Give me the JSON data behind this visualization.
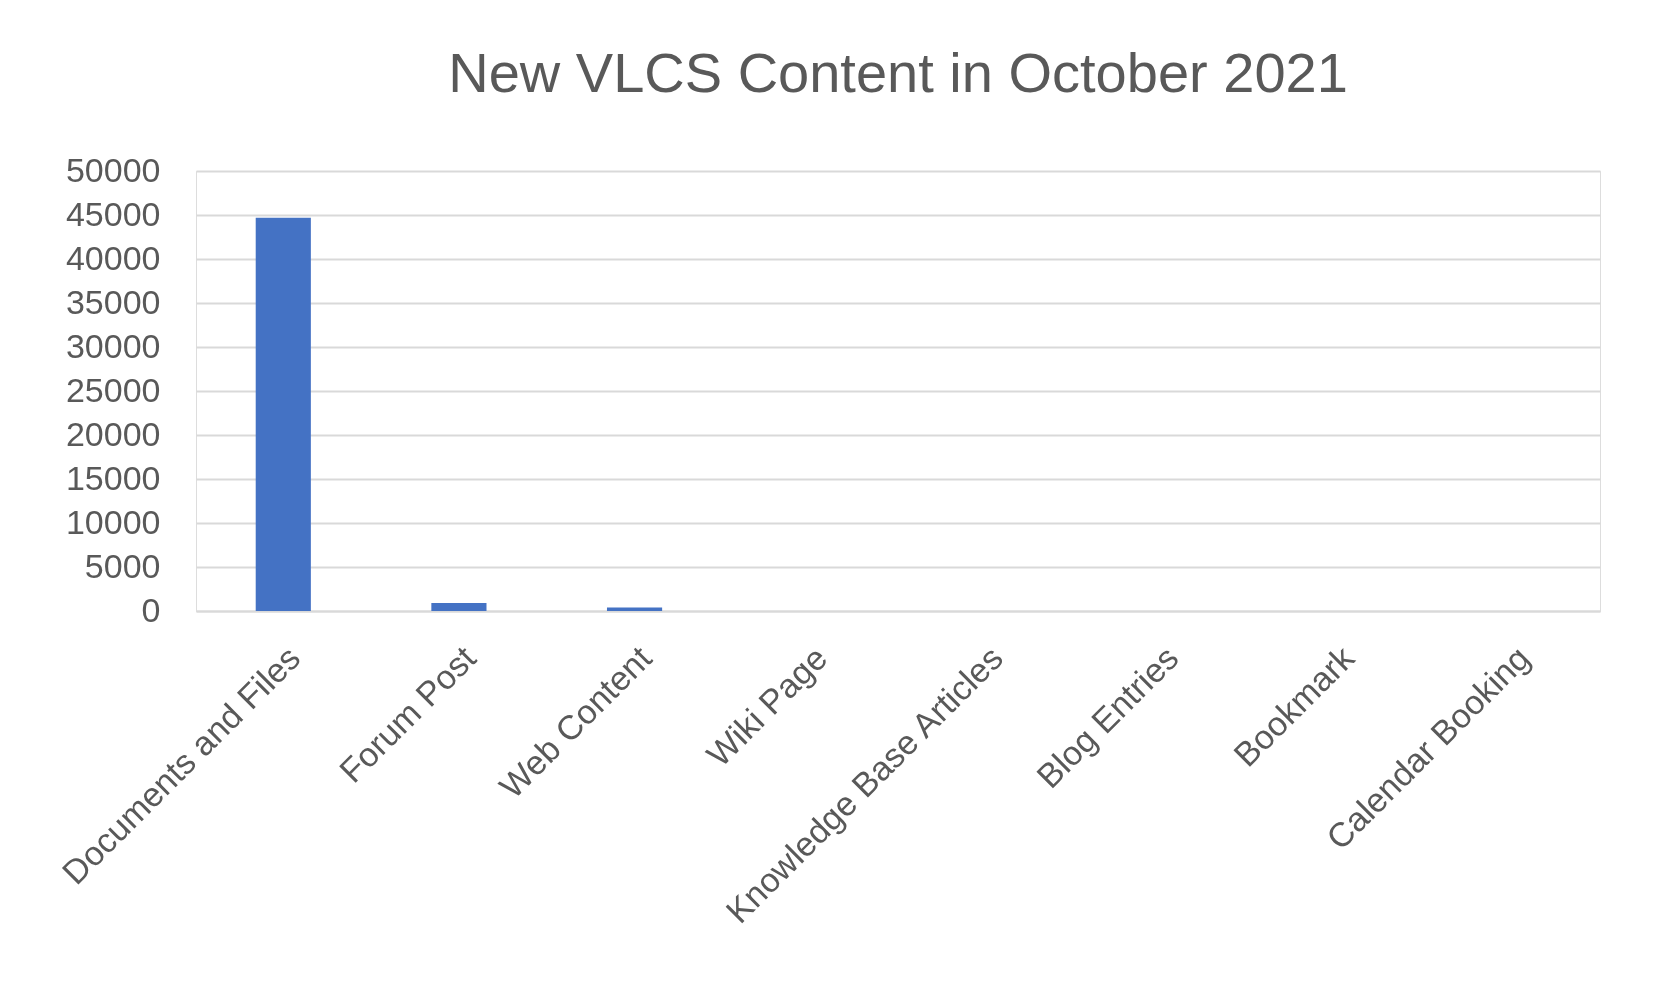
{
  "chart_data": {
    "type": "bar",
    "title": "New VLCS Content in October 2021",
    "categories": [
      "Documents and Files",
      "Forum Post",
      "Web Content",
      "Wiki Page",
      "Knowledge Base Articles",
      "Blog Entries",
      "Bookmark",
      "Calendar Booking"
    ],
    "values": [
      44700,
      900,
      400,
      0,
      0,
      0,
      0,
      0
    ],
    "color": "#4472c4",
    "ylim": [
      0,
      50000
    ],
    "yticks": [
      0,
      5000,
      10000,
      15000,
      20000,
      25000,
      30000,
      35000,
      40000,
      45000,
      50000
    ],
    "grid": "y"
  }
}
